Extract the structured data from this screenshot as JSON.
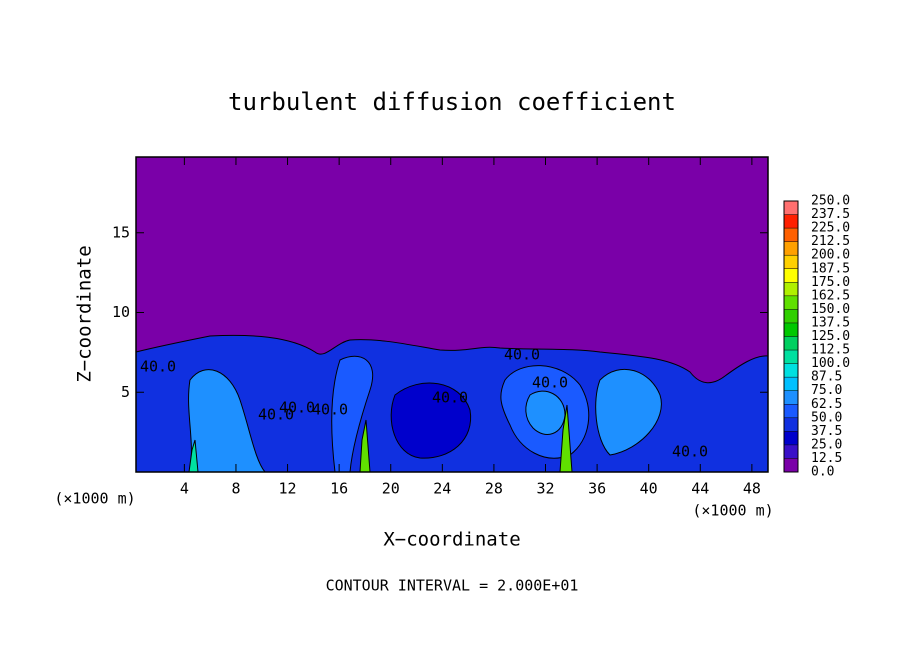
{
  "chart_data": {
    "type": "contour",
    "title": "turbulent diffusion coefficient",
    "x_label": "X−coordinate",
    "y_label": "Z−coordinate",
    "x_unit_label": "(×1000 m)",
    "y_unit_label": "(×1000 m)",
    "footer": "CONTOUR INTERVAL = 2.000E+01",
    "xlim": [
      0.25,
      49.25
    ],
    "ylim": [
      0,
      19.75
    ],
    "xticks": [
      4,
      8,
      12,
      16,
      20,
      24,
      28,
      32,
      36,
      40,
      44,
      48
    ],
    "yticks": [
      5,
      10,
      15
    ],
    "contour_labels": [
      "40.0",
      "40.0",
      "40.0",
      "40.0",
      "40.0",
      "40.0",
      "40.0",
      "40.0"
    ],
    "colorbar": {
      "levels": [
        {
          "value": 0,
          "label": "0.0"
        },
        {
          "value": 12.5,
          "label": "12.5"
        },
        {
          "value": 25,
          "label": "25.0"
        },
        {
          "value": 37.5,
          "label": "37.5"
        },
        {
          "value": 50,
          "label": "50.0"
        },
        {
          "value": 62.5,
          "label": "62.5"
        },
        {
          "value": 75,
          "label": "75.0"
        },
        {
          "value": 87.5,
          "label": "87.5"
        },
        {
          "value": 100,
          "label": "100.0"
        },
        {
          "value": 112.5,
          "label": "112.5"
        },
        {
          "value": 125,
          "label": "125.0"
        },
        {
          "value": 137.5,
          "label": "137.5"
        },
        {
          "value": 150,
          "label": "150.0"
        },
        {
          "value": 162.5,
          "label": "162.5"
        },
        {
          "value": 175,
          "label": "175.0"
        },
        {
          "value": 187.5,
          "label": "187.5"
        },
        {
          "value": 200,
          "label": "200.0"
        },
        {
          "value": 212.5,
          "label": "212.5"
        },
        {
          "value": 225,
          "label": "225.0"
        },
        {
          "value": 237.5,
          "label": "237.5"
        },
        {
          "value": 250,
          "label": "250.0"
        }
      ],
      "colors": [
        "#7a00a8",
        "#3a10c8",
        "#0000cc",
        "#1030e0",
        "#1a5aff",
        "#1e90ff",
        "#00c0ff",
        "#00e0e0",
        "#00e0a0",
        "#00d060",
        "#00c800",
        "#30d000",
        "#60e000",
        "#b0f000",
        "#ffff00",
        "#ffd000",
        "#ffa000",
        "#ff6000",
        "#ff2000",
        "#ff7070"
      ]
    }
  }
}
